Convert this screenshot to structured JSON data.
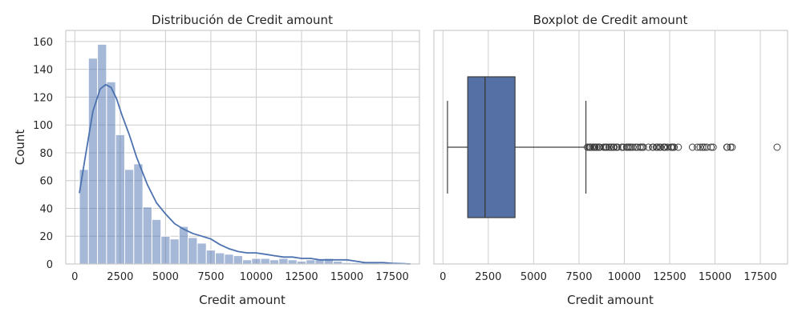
{
  "chart_data": [
    {
      "type": "histogram",
      "title": "Distribución de Credit amount",
      "xlabel": "Credit amount",
      "ylabel": "Count",
      "xlim": [
        -500,
        19000
      ],
      "ylim": [
        0,
        168
      ],
      "xticks": [
        0,
        2500,
        5000,
        7500,
        10000,
        12500,
        15000,
        17500
      ],
      "xtick_labels": [
        "0",
        "2500",
        "5000",
        "7500",
        "10000",
        "12500",
        "15000",
        "17500"
      ],
      "yticks": [
        0,
        20,
        40,
        60,
        80,
        100,
        120,
        140,
        160
      ],
      "ytick_labels": [
        "0",
        "20",
        "40",
        "60",
        "80",
        "100",
        "120",
        "140",
        "160"
      ],
      "bin_start": 250,
      "bin_width": 500,
      "counts": [
        68,
        148,
        158,
        131,
        93,
        68,
        72,
        41,
        32,
        20,
        18,
        27,
        19,
        15,
        10,
        8,
        7,
        6,
        3,
        4,
        4,
        3,
        4,
        3,
        2,
        3,
        3,
        4,
        2,
        1,
        1,
        1,
        1,
        0,
        0,
        1
      ],
      "kde": {
        "x": [
          250,
          600,
          1000,
          1400,
          1700,
          2000,
          2300,
          2600,
          3000,
          3400,
          4000,
          4500,
          5000,
          5500,
          6000,
          6500,
          7000,
          7500,
          8000,
          8500,
          9000,
          9500,
          10000,
          10500,
          11000,
          11500,
          12000,
          12500,
          13000,
          13500,
          14000,
          14500,
          15000,
          15500,
          16000,
          16500,
          17000,
          17500,
          18000,
          18500
        ],
        "y": [
          51,
          79,
          110,
          126,
          129,
          127,
          119,
          107,
          93,
          77,
          57,
          44,
          36,
          29,
          25,
          22,
          20,
          18,
          14,
          11,
          9,
          8,
          8,
          7,
          6,
          5,
          5,
          4,
          4,
          3,
          3,
          3,
          3,
          2,
          1,
          1,
          1,
          0.5,
          0.3,
          0
        ]
      },
      "color": "#4c72b0",
      "grid": true
    },
    {
      "type": "boxplot",
      "title": "Boxplot de Credit amount",
      "xlabel": "Credit amount",
      "xlim": [
        -500,
        19000
      ],
      "xticks": [
        0,
        2500,
        5000,
        7500,
        10000,
        12500,
        15000,
        17500
      ],
      "xtick_labels": [
        "0",
        "2500",
        "5000",
        "7500",
        "10000",
        "12500",
        "15000",
        "17500"
      ],
      "whisker_low": 250,
      "q1": 1366,
      "median": 2320,
      "q3": 3972,
      "whisker_high": 7882,
      "outliers": [
        7966,
        8065,
        8086,
        8133,
        8229,
        8318,
        8335,
        8358,
        8386,
        8471,
        8487,
        8588,
        8613,
        8648,
        8858,
        8947,
        8978,
        9034,
        9157,
        9271,
        9283,
        9398,
        9436,
        9566,
        9572,
        9629,
        9857,
        9960,
        10127,
        10144,
        10222,
        10297,
        10366,
        10477,
        10623,
        10722,
        10875,
        10961,
        10974,
        11054,
        11328,
        11560,
        11590,
        11760,
        11816,
        11938,
        11998,
        12169,
        12204,
        12259,
        12389,
        12579,
        12612,
        12680,
        12749,
        12976,
        13756,
        14027,
        14179,
        14318,
        14421,
        14555,
        14782,
        14896,
        15653,
        15672,
        15857,
        15945,
        18424
      ],
      "color": "#4c72b0",
      "grid": true
    }
  ]
}
